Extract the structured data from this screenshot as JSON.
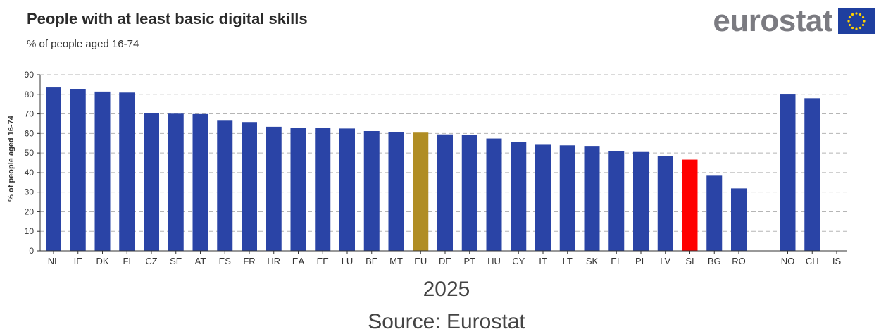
{
  "header": {
    "title": "People with at least basic digital skills",
    "subtitle": "% of people aged 16-74",
    "logo_text": "eurostat"
  },
  "footer": {
    "year": "2025",
    "source": "Source: Eurostat"
  },
  "colors": {
    "bar": "#2a44a6",
    "eu": "#b08d24",
    "highlight": "#ff0000",
    "grid": "#b5b5b5",
    "flag_blue": "#1f3f9f",
    "flag_star": "#ffd200"
  },
  "chart_data": {
    "type": "bar",
    "title": "People with at least basic digital skills",
    "subtitle": "% of people aged 16-74",
    "ylabel": "% of people aged 16-74",
    "xlabel": "",
    "ylim": [
      0,
      90
    ],
    "yticks": [
      0,
      10,
      20,
      30,
      40,
      50,
      60,
      70,
      80,
      90
    ],
    "grid": true,
    "categories": [
      "NL",
      "IE",
      "DK",
      "FI",
      "CZ",
      "SE",
      "AT",
      "ES",
      "FR",
      "HR",
      "EA",
      "EE",
      "LU",
      "BE",
      "MT",
      "EU",
      "DE",
      "PT",
      "HU",
      "CY",
      "IT",
      "LT",
      "SK",
      "EL",
      "PL",
      "LV",
      "SI",
      "BG",
      "RO",
      "",
      "NO",
      "CH",
      "IS"
    ],
    "values": [
      83.5,
      82.8,
      81.4,
      80.9,
      70.5,
      70.1,
      69.9,
      66.5,
      65.8,
      63.4,
      62.8,
      62.7,
      62.5,
      61.2,
      60.8,
      60.4,
      59.5,
      59.3,
      57.4,
      55.8,
      54.2,
      53.9,
      53.6,
      51.0,
      50.5,
      48.6,
      46.6,
      38.4,
      31.9,
      null,
      79.9,
      78.0,
      null
    ],
    "highlight": {
      "EU": "eu",
      "SI": "highlight"
    }
  }
}
